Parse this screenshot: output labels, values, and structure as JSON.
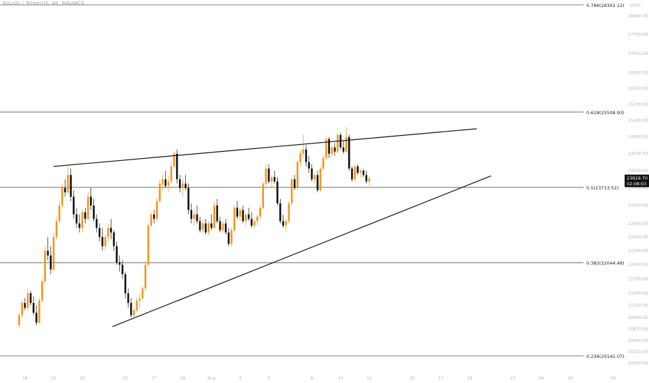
{
  "header": {
    "symbol_line": "Bitcoin / TetherUS, 4h, BINANCE"
  },
  "chart_data": {
    "type": "candlestick",
    "title": "",
    "currency": "USDT",
    "x_tick_labels": [
      "18",
      "20",
      "22",
      "25",
      "27",
      "29",
      "Aug",
      "3",
      "5",
      "8",
      "10",
      "12",
      "15",
      "17",
      "19",
      "22",
      "24",
      "26",
      "29"
    ],
    "y_tick_labels": [
      "28000.00",
      "27500.00",
      "27000.00",
      "26500.00",
      "26100.00",
      "25700.00",
      "25300.00",
      "24900.00",
      "24500.00",
      "24100.00",
      "23700.00",
      "23300.00",
      "22900.00",
      "22600.00",
      "22300.00",
      "22000.00",
      "21700.00",
      "21400.00",
      "21150.00",
      "20900.00",
      "20670.00",
      "20440.00",
      "20225.00",
      "20000.00"
    ],
    "ylim": [
      19950,
      28400
    ],
    "y_scale": "log",
    "fib_levels": [
      {
        "label": "0.786(28302.12)",
        "price": 28302.12
      },
      {
        "label": "0.618(25508.93)",
        "price": 25508.93
      },
      {
        "label": "0.5(23713.52)",
        "price": 23713.52
      },
      {
        "label": "0.382(22044.48)",
        "price": 22044.48
      },
      {
        "label": "0.236(20141.07)",
        "price": 20141.07
      }
    ],
    "last_price": {
      "label": "23919.70",
      "countdown": "02:08:03",
      "price": 23919.7
    },
    "trendlines": [
      {
        "name": "upper",
        "from": [
          20,
          24200
        ],
        "to": [
          49.5,
          25100
        ]
      },
      {
        "name": "lower",
        "from": [
          24.1,
          20720
        ],
        "to": [
          50.5,
          23980
        ]
      }
    ],
    "colors": {
      "bull": "#f7931a",
      "bear": "#111111",
      "fib": "#555555",
      "trend": "#111111",
      "axis_text": "#b0b4b8"
    },
    "candles": [
      [
        17.6,
        20750,
        21000,
        20700,
        20950
      ],
      [
        17.8,
        20950,
        21250,
        20900,
        21200
      ],
      [
        18.0,
        21200,
        21300,
        21050,
        21100
      ],
      [
        18.2,
        21100,
        21500,
        21050,
        21400
      ],
      [
        18.4,
        21400,
        21450,
        21150,
        21200
      ],
      [
        18.6,
        21200,
        21350,
        20950,
        21000
      ],
      [
        18.8,
        21000,
        21150,
        20750,
        20800
      ],
      [
        19.0,
        20800,
        21300,
        20780,
        21250
      ],
      [
        19.2,
        21250,
        21700,
        21200,
        21650
      ],
      [
        19.4,
        21650,
        22400,
        21600,
        22300
      ],
      [
        19.6,
        22300,
        22600,
        22100,
        22200
      ],
      [
        19.8,
        22200,
        22400,
        21800,
        21900
      ],
      [
        20.0,
        21900,
        22700,
        21850,
        22600
      ],
      [
        20.2,
        22600,
        23050,
        22550,
        22950
      ],
      [
        20.4,
        22950,
        23400,
        22900,
        23300
      ],
      [
        20.6,
        23300,
        23800,
        23250,
        23700
      ],
      [
        20.8,
        23700,
        23900,
        23500,
        23600
      ],
      [
        21.0,
        23600,
        24200,
        23550,
        24000
      ],
      [
        21.2,
        24000,
        24150,
        23400,
        23500
      ],
      [
        21.4,
        23500,
        23650,
        23000,
        23100
      ],
      [
        21.6,
        23100,
        23250,
        22800,
        22900
      ],
      [
        21.8,
        22900,
        23100,
        22700,
        22800
      ],
      [
        22.0,
        22800,
        23200,
        22700,
        23150
      ],
      [
        22.2,
        23150,
        23250,
        22900,
        23000
      ],
      [
        22.4,
        23000,
        23600,
        22950,
        23500
      ],
      [
        22.6,
        23500,
        23700,
        23200,
        23300
      ],
      [
        22.8,
        23300,
        23450,
        22950,
        23000
      ],
      [
        23.0,
        23000,
        23100,
        22700,
        22800
      ],
      [
        23.2,
        22800,
        22900,
        22500,
        22600
      ],
      [
        23.4,
        22600,
        22800,
        22300,
        22400
      ],
      [
        23.6,
        22400,
        22650,
        22300,
        22600
      ],
      [
        23.8,
        22600,
        22900,
        22500,
        22800
      ],
      [
        24.0,
        22800,
        23000,
        22550,
        22700
      ],
      [
        24.2,
        22700,
        22750,
        22300,
        22400
      ],
      [
        24.4,
        22400,
        22500,
        22000,
        22050
      ],
      [
        24.6,
        22050,
        22200,
        21850,
        22000
      ],
      [
        24.8,
        22000,
        22100,
        21700,
        21800
      ],
      [
        25.0,
        21800,
        21850,
        21300,
        21400
      ],
      [
        25.2,
        21400,
        21500,
        21100,
        21200
      ],
      [
        25.4,
        21200,
        21300,
        20900,
        20950
      ],
      [
        25.6,
        20950,
        21100,
        20900,
        21050
      ],
      [
        25.8,
        21050,
        21300,
        21000,
        21250
      ],
      [
        26.0,
        21250,
        21400,
        21100,
        21300
      ],
      [
        26.2,
        21300,
        21550,
        21250,
        21500
      ],
      [
        26.4,
        21500,
        22100,
        21450,
        22000
      ],
      [
        26.6,
        22000,
        22900,
        21950,
        22850
      ],
      [
        26.8,
        22850,
        23150,
        22800,
        23100
      ],
      [
        27.0,
        23100,
        23200,
        22900,
        23000
      ],
      [
        27.2,
        23000,
        23500,
        22950,
        23400
      ],
      [
        27.4,
        23400,
        23900,
        23350,
        23800
      ],
      [
        27.6,
        23800,
        24000,
        23650,
        23900
      ],
      [
        27.8,
        23900,
        24100,
        23700,
        23750
      ],
      [
        28.0,
        23750,
        24000,
        23600,
        23850
      ],
      [
        28.2,
        23850,
        24300,
        23800,
        24200
      ],
      [
        28.4,
        24200,
        24550,
        24150,
        24500
      ],
      [
        28.6,
        24500,
        24600,
        23800,
        23900
      ],
      [
        28.8,
        23900,
        24000,
        23600,
        23700
      ],
      [
        29.0,
        23700,
        23900,
        23500,
        23800
      ],
      [
        29.2,
        23800,
        24000,
        23650,
        23700
      ],
      [
        29.4,
        23700,
        23800,
        23100,
        23200
      ],
      [
        29.6,
        23200,
        23350,
        22900,
        23000
      ],
      [
        29.8,
        23000,
        23200,
        22850,
        23100
      ],
      [
        30.0,
        23100,
        23300,
        22900,
        22950
      ],
      [
        30.2,
        22950,
        23050,
        22700,
        22750
      ],
      [
        30.4,
        22750,
        23000,
        22700,
        22900
      ],
      [
        30.6,
        22900,
        23000,
        22650,
        22700
      ],
      [
        30.8,
        22700,
        22950,
        22650,
        22900
      ],
      [
        31.0,
        22900,
        23100,
        22750,
        22800
      ],
      [
        31.2,
        22800,
        23400,
        22780,
        23300
      ],
      [
        31.4,
        23300,
        23450,
        22900,
        22950
      ],
      [
        31.6,
        22950,
        23050,
        22700,
        22750
      ],
      [
        31.8,
        22750,
        22950,
        22700,
        22900
      ],
      [
        32.0,
        22900,
        23000,
        22650,
        22700
      ],
      [
        32.2,
        22700,
        22800,
        22400,
        22450
      ],
      [
        32.4,
        22450,
        22800,
        22400,
        22750
      ],
      [
        32.6,
        22750,
        23300,
        22700,
        23250
      ],
      [
        32.8,
        23250,
        23400,
        23000,
        23050
      ],
      [
        33.0,
        23050,
        23250,
        22950,
        23200
      ],
      [
        33.2,
        23200,
        23300,
        22900,
        22950
      ],
      [
        33.4,
        22950,
        23150,
        22850,
        23100
      ],
      [
        33.6,
        23100,
        23250,
        22950,
        23000
      ],
      [
        33.8,
        23000,
        23150,
        22800,
        22850
      ],
      [
        34.0,
        22850,
        23000,
        22800,
        22950
      ],
      [
        34.2,
        22950,
        23100,
        22850,
        23050
      ],
      [
        34.4,
        23050,
        23300,
        23000,
        23250
      ],
      [
        34.6,
        23250,
        23850,
        23200,
        23800
      ],
      [
        34.8,
        23800,
        24250,
        23750,
        24150
      ],
      [
        35.0,
        24150,
        24250,
        23800,
        23850
      ],
      [
        35.2,
        23850,
        24000,
        23700,
        23950
      ],
      [
        35.4,
        23950,
        24100,
        23800,
        23850
      ],
      [
        35.6,
        23850,
        23950,
        23300,
        23350
      ],
      [
        35.8,
        23350,
        23450,
        22900,
        22950
      ],
      [
        36.0,
        22950,
        23100,
        22800,
        22850
      ],
      [
        36.2,
        22850,
        23000,
        22700,
        22950
      ],
      [
        36.4,
        22950,
        23400,
        22900,
        23350
      ],
      [
        36.6,
        23350,
        23950,
        23300,
        23900
      ],
      [
        36.8,
        23900,
        24000,
        23650,
        23700
      ],
      [
        37.0,
        23700,
        24350,
        23650,
        24300
      ],
      [
        37.2,
        24300,
        24600,
        24200,
        24500
      ],
      [
        37.4,
        24500,
        24950,
        24400,
        24600
      ],
      [
        37.6,
        24600,
        24700,
        24200,
        24300
      ],
      [
        37.8,
        24300,
        24450,
        24050,
        24150
      ],
      [
        38.0,
        24150,
        24250,
        23850,
        23900
      ],
      [
        38.2,
        23900,
        24050,
        23800,
        24000
      ],
      [
        38.4,
        24000,
        24100,
        23600,
        23650
      ],
      [
        38.6,
        23650,
        24200,
        23600,
        24150
      ],
      [
        38.8,
        24150,
        24450,
        24100,
        24400
      ],
      [
        39.0,
        24400,
        24900,
        24350,
        24850
      ],
      [
        39.2,
        24850,
        24900,
        24400,
        24500
      ],
      [
        39.4,
        24500,
        24700,
        24450,
        24650
      ],
      [
        39.6,
        24650,
        24750,
        24450,
        24550
      ],
      [
        39.8,
        24550,
        25000,
        24500,
        24950
      ],
      [
        40.0,
        24950,
        25000,
        24600,
        24650
      ],
      [
        40.2,
        24650,
        24800,
        24500,
        24550
      ],
      [
        40.4,
        24550,
        25150,
        24500,
        24900
      ],
      [
        40.6,
        24900,
        24950,
        24100,
        24150
      ],
      [
        40.8,
        24150,
        24200,
        23850,
        23900
      ],
      [
        41.0,
        23900,
        24250,
        23850,
        24200
      ],
      [
        41.2,
        24200,
        24250,
        24000,
        24050
      ],
      [
        41.4,
        24050,
        24150,
        23950,
        24100
      ],
      [
        41.6,
        24100,
        24150,
        23950,
        24000
      ],
      [
        41.8,
        24000,
        24100,
        23800,
        23850
      ],
      [
        42.0,
        23850,
        23950,
        23750,
        23920
      ]
    ]
  }
}
